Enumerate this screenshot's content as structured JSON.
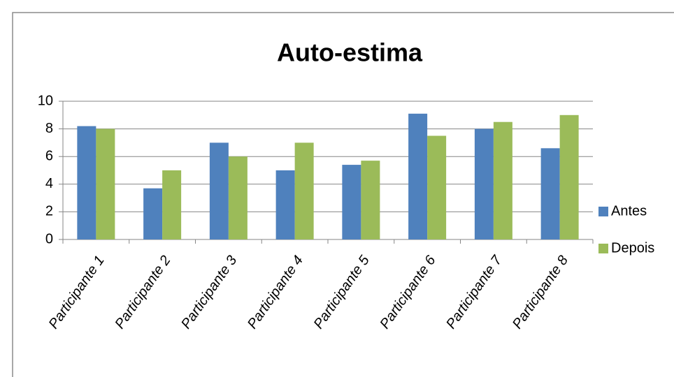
{
  "chart_data": {
    "type": "bar",
    "title": "Auto-estima",
    "categories": [
      "Participante 1",
      "Participante 2",
      "Participante 3",
      "Participante 4",
      "Participante 5",
      "Participante 6",
      "Participante 7",
      "Participante 8"
    ],
    "series": [
      {
        "name": "Antes",
        "color": "#4f81bd",
        "values": [
          8.2,
          3.7,
          7.0,
          5.0,
          5.4,
          9.1,
          8.0,
          6.6
        ]
      },
      {
        "name": "Depois",
        "color": "#9bbb59",
        "values": [
          8.0,
          5.0,
          6.0,
          7.0,
          5.7,
          7.5,
          8.5,
          9.0
        ]
      }
    ],
    "ylim": [
      0,
      10
    ],
    "yticks": [
      0,
      2,
      4,
      6,
      8,
      10
    ],
    "grid": true,
    "legend": "right"
  }
}
